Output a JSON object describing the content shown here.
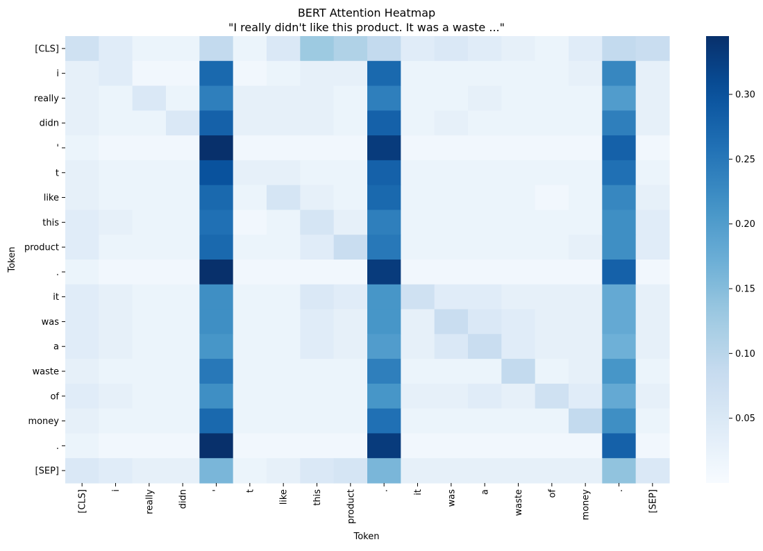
{
  "chart_data": {
    "type": "heatmap",
    "title": "BERT Attention Heatmap",
    "subtitle": "\"I really didn't like this product. It was a waste ...\"",
    "xlabel": "Token",
    "ylabel": "Token",
    "x_tokens": [
      "[CLS]",
      "i",
      "really",
      "didn",
      "'",
      "t",
      "like",
      "this",
      "product",
      ".",
      "it",
      "was",
      "a",
      "waste",
      "of",
      "money",
      ".",
      "[SEP]"
    ],
    "y_tokens": [
      "[CLS]",
      "i",
      "really",
      "didn",
      "'",
      "t",
      "like",
      "this",
      "product",
      ".",
      "it",
      "was",
      "a",
      "waste",
      "of",
      "money",
      ".",
      "[SEP]"
    ],
    "colormap": "Blues",
    "vmin": 0.0,
    "vmax": 0.345,
    "colorbar_ticks": [
      0.05,
      0.1,
      0.15,
      0.2,
      0.25,
      0.3
    ],
    "colorbar_tick_labels": [
      "0.05",
      "0.10",
      "0.15",
      "0.20",
      "0.25",
      "0.30"
    ],
    "values": [
      [
        0.07,
        0.04,
        0.02,
        0.02,
        0.09,
        0.02,
        0.05,
        0.13,
        0.11,
        0.09,
        0.04,
        0.05,
        0.04,
        0.03,
        0.02,
        0.04,
        0.09,
        0.08
      ],
      [
        0.03,
        0.04,
        0.01,
        0.01,
        0.27,
        0.01,
        0.02,
        0.03,
        0.03,
        0.27,
        0.02,
        0.02,
        0.02,
        0.02,
        0.02,
        0.03,
        0.23,
        0.03
      ],
      [
        0.03,
        0.02,
        0.05,
        0.02,
        0.24,
        0.03,
        0.03,
        0.03,
        0.02,
        0.24,
        0.02,
        0.02,
        0.03,
        0.02,
        0.02,
        0.02,
        0.2,
        0.03
      ],
      [
        0.03,
        0.02,
        0.02,
        0.05,
        0.28,
        0.03,
        0.03,
        0.03,
        0.02,
        0.28,
        0.02,
        0.03,
        0.02,
        0.02,
        0.02,
        0.02,
        0.24,
        0.03
      ],
      [
        0.02,
        0.01,
        0.01,
        0.01,
        0.345,
        0.01,
        0.01,
        0.01,
        0.01,
        0.33,
        0.01,
        0.01,
        0.01,
        0.01,
        0.01,
        0.01,
        0.28,
        0.01
      ],
      [
        0.03,
        0.02,
        0.02,
        0.02,
        0.3,
        0.03,
        0.03,
        0.02,
        0.02,
        0.28,
        0.02,
        0.02,
        0.02,
        0.02,
        0.02,
        0.02,
        0.26,
        0.02
      ],
      [
        0.03,
        0.02,
        0.02,
        0.02,
        0.27,
        0.02,
        0.06,
        0.03,
        0.02,
        0.27,
        0.02,
        0.02,
        0.02,
        0.02,
        0.01,
        0.02,
        0.23,
        0.03
      ],
      [
        0.04,
        0.03,
        0.02,
        0.02,
        0.26,
        0.01,
        0.02,
        0.06,
        0.03,
        0.24,
        0.02,
        0.02,
        0.02,
        0.02,
        0.02,
        0.02,
        0.22,
        0.04
      ],
      [
        0.04,
        0.02,
        0.02,
        0.02,
        0.27,
        0.02,
        0.02,
        0.04,
        0.08,
        0.25,
        0.02,
        0.02,
        0.02,
        0.02,
        0.02,
        0.03,
        0.22,
        0.04
      ],
      [
        0.02,
        0.01,
        0.01,
        0.01,
        0.345,
        0.01,
        0.01,
        0.01,
        0.01,
        0.33,
        0.01,
        0.01,
        0.01,
        0.01,
        0.01,
        0.01,
        0.28,
        0.01
      ],
      [
        0.04,
        0.03,
        0.02,
        0.02,
        0.22,
        0.02,
        0.02,
        0.05,
        0.04,
        0.21,
        0.07,
        0.04,
        0.04,
        0.03,
        0.03,
        0.03,
        0.18,
        0.03
      ],
      [
        0.04,
        0.03,
        0.02,
        0.02,
        0.22,
        0.02,
        0.02,
        0.04,
        0.03,
        0.21,
        0.03,
        0.08,
        0.05,
        0.04,
        0.03,
        0.03,
        0.18,
        0.03
      ],
      [
        0.04,
        0.03,
        0.02,
        0.02,
        0.21,
        0.02,
        0.02,
        0.04,
        0.03,
        0.2,
        0.03,
        0.05,
        0.08,
        0.04,
        0.03,
        0.03,
        0.17,
        0.03
      ],
      [
        0.03,
        0.02,
        0.02,
        0.02,
        0.25,
        0.02,
        0.02,
        0.02,
        0.02,
        0.24,
        0.02,
        0.02,
        0.02,
        0.09,
        0.02,
        0.03,
        0.21,
        0.02
      ],
      [
        0.04,
        0.03,
        0.02,
        0.02,
        0.22,
        0.02,
        0.02,
        0.02,
        0.02,
        0.21,
        0.03,
        0.03,
        0.04,
        0.03,
        0.07,
        0.04,
        0.18,
        0.03
      ],
      [
        0.03,
        0.02,
        0.02,
        0.02,
        0.27,
        0.02,
        0.02,
        0.02,
        0.02,
        0.26,
        0.02,
        0.02,
        0.02,
        0.02,
        0.02,
        0.09,
        0.22,
        0.02
      ],
      [
        0.02,
        0.01,
        0.01,
        0.01,
        0.345,
        0.01,
        0.01,
        0.01,
        0.01,
        0.33,
        0.01,
        0.01,
        0.01,
        0.01,
        0.01,
        0.01,
        0.28,
        0.01
      ],
      [
        0.05,
        0.04,
        0.03,
        0.03,
        0.16,
        0.02,
        0.03,
        0.05,
        0.06,
        0.16,
        0.03,
        0.03,
        0.03,
        0.03,
        0.03,
        0.03,
        0.14,
        0.05
      ]
    ]
  }
}
